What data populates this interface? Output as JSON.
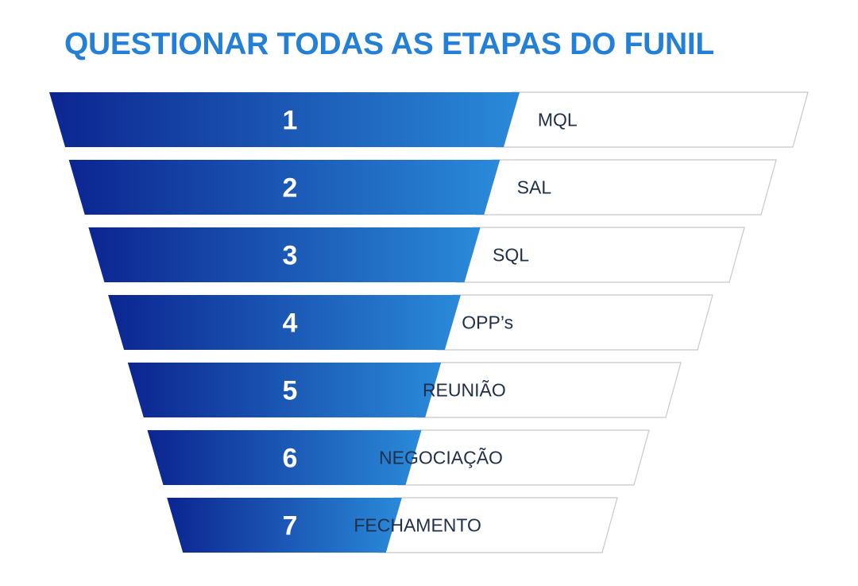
{
  "title": "QUESTIONAR TODAS AS ETAPAS DO FUNIL",
  "colors": {
    "title": "#2480d6",
    "gradient_start": "#0c2590",
    "gradient_end": "#2a8ad9",
    "label_text": "#1f2f4a",
    "label_border": "#c8c8c8"
  },
  "stages": [
    {
      "number": "1",
      "label": "MQL"
    },
    {
      "number": "2",
      "label": "SAL"
    },
    {
      "number": "3",
      "label": "SQL"
    },
    {
      "number": "4",
      "label": "OPP’s"
    },
    {
      "number": "5",
      "label": "REUNIÃO"
    },
    {
      "number": "6",
      "label": "NEGOCIAÇÃO"
    },
    {
      "number": "7",
      "label": "FECHAMENTO"
    }
  ]
}
